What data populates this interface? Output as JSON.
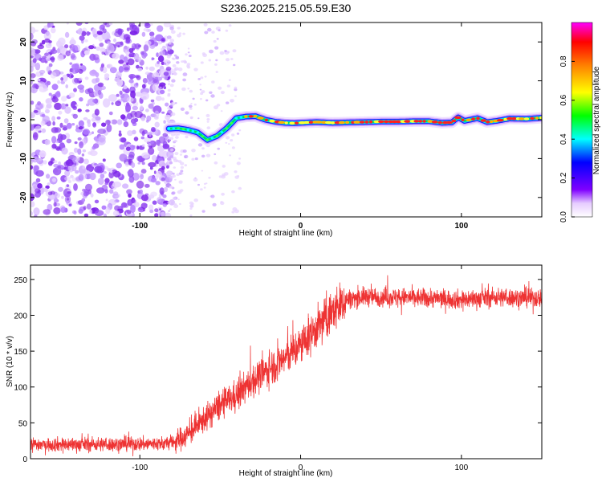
{
  "title": "S236.2025.215.05.59.E30",
  "chart_data": [
    {
      "type": "heatmap",
      "xlabel": "Height of straight line (km)",
      "ylabel": "Frequency (Hz)",
      "xlim": [
        -168,
        150
      ],
      "ylim": [
        -25,
        25
      ],
      "xticks": [
        -100,
        0,
        100
      ],
      "xtick_labels": [
        "-100",
        "0",
        "100"
      ],
      "yticks": [
        -20,
        -10,
        0,
        10,
        20
      ],
      "ytick_labels": [
        "-20",
        "-10",
        "0",
        "10",
        "20"
      ],
      "noise_region_x": [
        -168,
        -82
      ],
      "ridge": {
        "x": [
          -82,
          -76,
          -70,
          -64,
          -58,
          -52,
          -46,
          -40,
          -34,
          -28,
          -22,
          -16,
          -10,
          -4,
          0,
          10,
          20,
          30,
          40,
          50,
          60,
          70,
          80,
          88,
          94,
          98,
          102,
          110,
          116,
          122,
          130,
          140,
          150
        ],
        "frequency": [
          -2.3,
          -2.2,
          -2.6,
          -3.3,
          -5.2,
          -4.2,
          -2.2,
          0.4,
          0.8,
          0.9,
          0.0,
          -0.5,
          -0.8,
          -0.9,
          -0.8,
          -0.6,
          -0.8,
          -0.7,
          -0.6,
          -0.5,
          -0.5,
          -0.4,
          -0.4,
          -0.8,
          -0.7,
          0.6,
          -0.3,
          0.4,
          -0.6,
          -0.3,
          0.3,
          0.2,
          0.5
        ]
      },
      "colorbar": {
        "label": "Normalized spectral amplitude",
        "range": [
          0,
          1
        ],
        "ticks": [
          0.0,
          0.2,
          0.4,
          0.6,
          0.8
        ],
        "tick_labels": [
          "0.0",
          "0.2",
          "0.4",
          "0.6",
          "0.8"
        ],
        "colors": [
          "#ffffff",
          "#7f00ff",
          "#0000ff",
          "#00ffff",
          "#00ff00",
          "#ffff00",
          "#ff7f00",
          "#ff0000",
          "#ff00ff"
        ]
      },
      "grid": false
    },
    {
      "type": "line",
      "xlabel": "Height of straight line (km)",
      "ylabel": "SNR (10 * v/v)",
      "xlim": [
        -168,
        150
      ],
      "ylim": [
        0,
        270
      ],
      "xticks": [
        -100,
        0,
        100
      ],
      "xtick_labels": [
        "-100",
        "0",
        "100"
      ],
      "yticks": [
        0,
        50,
        100,
        150,
        200,
        250
      ],
      "ytick_labels": [
        "0",
        "50",
        "100",
        "150",
        "200",
        "250"
      ],
      "color": "#ee3333",
      "trend": {
        "x": [
          -168,
          -120,
          -85,
          -78,
          -70,
          -60,
          -50,
          -40,
          -30,
          -20,
          -10,
          0,
          10,
          20,
          28,
          40,
          60,
          80,
          100,
          120,
          150
        ],
        "y": [
          20,
          20,
          21,
          24,
          34,
          55,
          75,
          88,
          108,
          125,
          140,
          158,
          182,
          205,
          222,
          226,
          225,
          224,
          222,
          225,
          224
        ]
      },
      "grid": false
    }
  ]
}
